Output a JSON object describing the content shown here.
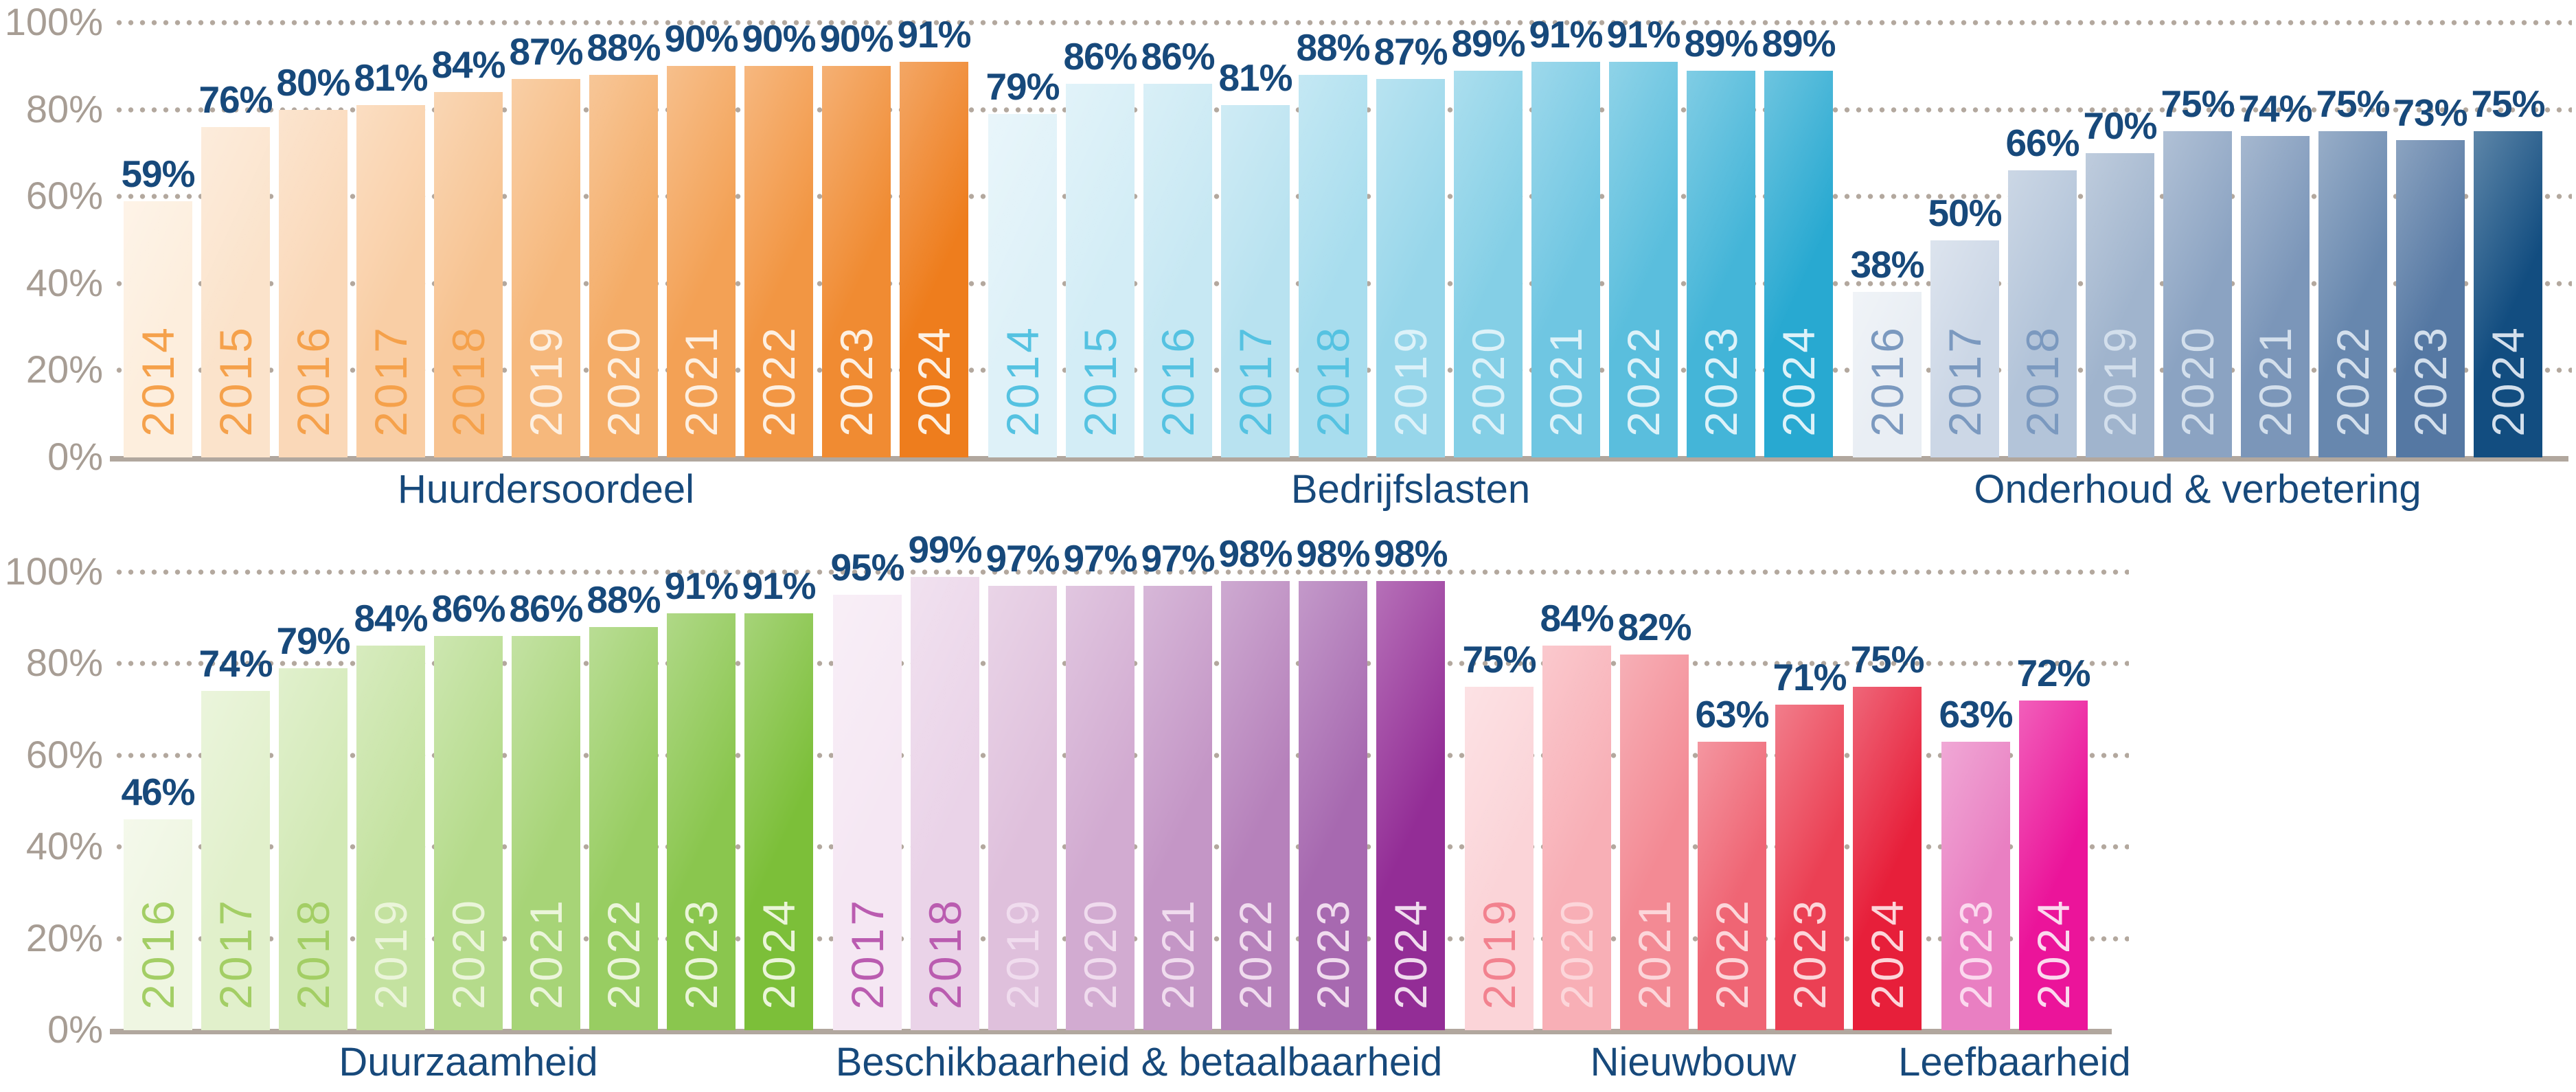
{
  "palette": {
    "background": "#ffffff",
    "axis_text": "#a79d94",
    "grid_dot": "#b3a89e",
    "baseline": "#b1a79e",
    "value_text": "#17497b",
    "category_text": "#17497b"
  },
  "chart_data": {
    "type": "bar",
    "unit": "%",
    "ylim": [
      0,
      100
    ],
    "yticks": [
      "100%",
      "80%",
      "60%",
      "40%",
      "20%",
      "0%"
    ],
    "grid": "dotted horizontal lines every 20%",
    "legend": "none",
    "rows": [
      {
        "groups": [
          {
            "label": "Huurdersoordeel",
            "years": [
              "2014",
              "2015",
              "2016",
              "2017",
              "2018",
              "2019",
              "2020",
              "2021",
              "2022",
              "2023",
              "2024"
            ],
            "values": [
              59,
              76,
              80,
              81,
              84,
              87,
              88,
              90,
              90,
              90,
              91
            ],
            "bar_colors": [
              "#fdeedd",
              "#fbe3cb",
              "#fad8b8",
              "#f9cea5",
              "#f7c391",
              "#f6b87c",
              "#f4ac67",
              "#f3a155",
              "#f29643",
              "#f08b32",
              "#ee7d1d"
            ],
            "year_label_dark": "#f5a14b",
            "year_label_light": "#fdf0e2",
            "dark_label_count": 5
          },
          {
            "label": "Bedrijfslasten",
            "years": [
              "2014",
              "2015",
              "2016",
              "2017",
              "2018",
              "2019",
              "2020",
              "2021",
              "2022",
              "2023",
              "2024"
            ],
            "values": [
              79,
              86,
              86,
              81,
              88,
              87,
              89,
              91,
              91,
              89,
              89
            ],
            "bar_colors": [
              "#def1f8",
              "#d3edf6",
              "#c7e8f3",
              "#b8e2f0",
              "#a8ddee",
              "#97d6ea",
              "#84cfe6",
              "#6fc6e2",
              "#5abedd",
              "#44b5d8",
              "#28a9d1"
            ],
            "year_label_dark": "#55c2e1",
            "year_label_light": "#ddf2f9",
            "dark_label_count": 5
          },
          {
            "label": "Onderhoud & verbetering",
            "years": [
              "2016",
              "2017",
              "2018",
              "2019",
              "2020",
              "2021",
              "2022",
              "2023",
              "2024"
            ],
            "values": [
              38,
              50,
              66,
              70,
              75,
              74,
              75,
              73,
              75
            ],
            "bar_colors": [
              "#e9eef4",
              "#ccd7e6",
              "#b3c4d9",
              "#a0b4cd",
              "#8ba3c2",
              "#7b96b9",
              "#6787ae",
              "#5578a3",
              "#124d80"
            ],
            "year_label_dark": "#7b99bf",
            "year_label_light": "#d3dfec",
            "dark_label_count": 3
          }
        ]
      },
      {
        "groups": [
          {
            "label": "Duurzaamheid",
            "years": [
              "2016",
              "2017",
              "2018",
              "2019",
              "2020",
              "2021",
              "2022",
              "2023",
              "2024"
            ],
            "values": [
              46,
              74,
              79,
              84,
              86,
              86,
              88,
              91,
              91
            ],
            "bar_colors": [
              "#eff6e2",
              "#e1f0cb",
              "#d2e9b5",
              "#c4e2a0",
              "#b5db8b",
              "#a7d477",
              "#98cd62",
              "#8ac64e",
              "#7cbf39"
            ],
            "year_label_dark": "#a3ce65",
            "year_label_light": "#ebf5da",
            "dark_label_count": 3
          },
          {
            "label": "Beschikbaarheid & betaalbaarheid",
            "years": [
              "2017",
              "2018",
              "2019",
              "2020",
              "2021",
              "2022",
              "2023",
              "2024"
            ],
            "values": [
              95,
              99,
              97,
              97,
              97,
              98,
              98,
              98
            ],
            "bar_colors": [
              "#f5e7f3",
              "#ead3e8",
              "#dfc0dc",
              "#d2abd1",
              "#c496c6",
              "#b681bb",
              "#a769b0",
              "#932d96"
            ],
            "year_label_dark": "#ba5cb0",
            "year_label_light": "#f0dcee",
            "dark_label_count": 2
          },
          {
            "label": "Nieuwbouw",
            "years": [
              "2019",
              "2020",
              "2021",
              "2022",
              "2023",
              "2024"
            ],
            "values": [
              75,
              84,
              82,
              63,
              71,
              75
            ],
            "bar_colors": [
              "#fbd4d8",
              "#f8afb6",
              "#f38a94",
              "#ef6574",
              "#eb4054",
              "#e71f3a"
            ],
            "year_label_dark": "#f2828f",
            "year_label_light": "#fcd6da",
            "dark_label_count": 1
          },
          {
            "label": "Leefbaarheid",
            "years": [
              "2023",
              "2024"
            ],
            "values": [
              63,
              72
            ],
            "bar_colors": [
              "#e97fc2",
              "#eb149a"
            ],
            "year_label_dark": "#f09ccd",
            "year_label_light": "#fbd9ee",
            "dark_label_count": 0
          }
        ]
      }
    ]
  }
}
